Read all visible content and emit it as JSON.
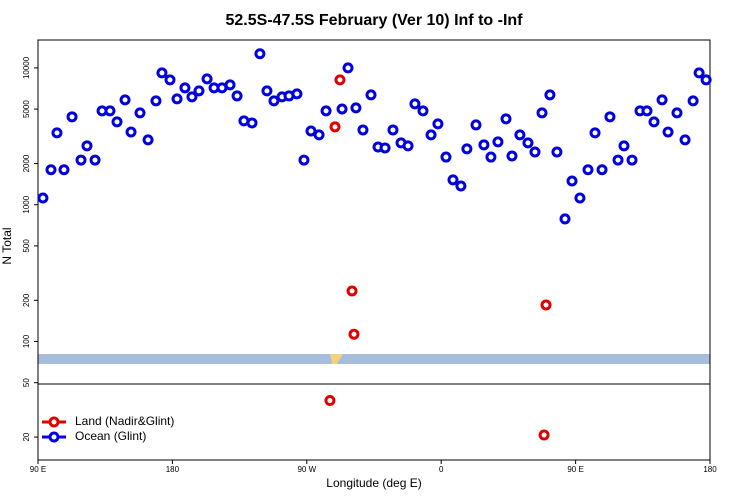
{
  "chart_data": {
    "type": "scatter",
    "title": "52.5S-47.5S February (Ver 10)   Inf to -Inf",
    "xlabel": "Longitude (deg E)",
    "ylabel": "N Total",
    "xlim": [
      90,
      540
    ],
    "ylim": [
      13.6,
      16000
    ],
    "log_y": true,
    "legend": "lower left",
    "xticks": [
      {
        "value": 90,
        "label": "90 E"
      },
      180,
      {
        "value": 270,
        "label": "90 W"
      },
      {
        "value": 360,
        "label": "0"
      },
      {
        "value": 450,
        "label": "90 E"
      },
      {
        "value": 540,
        "label": "180"
      }
    ],
    "yticks": [
      20,
      50,
      100,
      200,
      500,
      1000,
      2000,
      5000,
      10000
    ],
    "series": [
      {
        "name": "Land (Nadir&Glint)",
        "color": "#e00000",
        "x": [
          285.5,
          288.9,
          292.2,
          300.3,
          301.6,
          428.9,
          430.2
        ],
        "values": [
          37,
          3710,
          8180,
          234,
          113,
          20.7,
          185
        ]
      },
      {
        "name": "Ocean (Glint)",
        "color": "#0000e0",
        "x": [
          93.3,
          98.7,
          102.7,
          107.4,
          112.8,
          118.8,
          122.8,
          128.2,
          132.9,
          138.2,
          142.9,
          148.3,
          152.3,
          158.3,
          163.7,
          169.0,
          173.0,
          178.4,
          183.1,
          188.4,
          193.1,
          197.8,
          203.2,
          207.9,
          213.2,
          218.6,
          223.3,
          227.9,
          233.3,
          238.6,
          243.3,
          248.0,
          253.4,
          258.1,
          263.4,
          268.1,
          272.8,
          278.2,
          282.9,
          293.6,
          297.6,
          302.9,
          307.6,
          313.0,
          317.7,
          322.4,
          327.7,
          333.1,
          337.8,
          342.4,
          347.8,
          353.2,
          357.8,
          363.2,
          367.9,
          373.2,
          377.2,
          383.3,
          388.6,
          393.3,
          398.0,
          403.4,
          407.4,
          412.7,
          418.1,
          422.8,
          427.5,
          432.8,
          437.5,
          442.9,
          447.6,
          452.9,
          458.3,
          463.0,
          467.7,
          473.0,
          478.4,
          482.4,
          487.8,
          493.1,
          497.8,
          502.5,
          507.9,
          511.9,
          517.9,
          523.3,
          528.7,
          532.7,
          537.4
        ],
        "values": [
          1120,
          1800,
          3350,
          1800,
          4390,
          2120,
          2690,
          2120,
          4850,
          4850,
          4030,
          5840,
          3400,
          4690,
          2980,
          5740,
          9200,
          8180,
          5940,
          7150,
          6140,
          6790,
          8320,
          7150,
          7150,
          7520,
          6240,
          4100,
          3960,
          12700,
          6790,
          5740,
          6140,
          6240,
          6460,
          2120,
          3460,
          3240,
          4850,
          5010,
          10000,
          5100,
          3520,
          6350,
          2640,
          2600,
          3520,
          2830,
          2690,
          5460,
          4850,
          3240,
          3900,
          2230,
          1520,
          1370,
          2560,
          3830,
          2740,
          2230,
          2880,
          4240,
          2270,
          3240,
          2830,
          2430,
          4690,
          6350,
          2430,
          787,
          1490,
          1120,
          1800,
          3350,
          1800,
          4390,
          2120,
          2690,
          2120,
          4850,
          4850,
          4030,
          5840,
          3400,
          4690,
          2980,
          5740,
          9200,
          8180
        ]
      }
    ]
  }
}
